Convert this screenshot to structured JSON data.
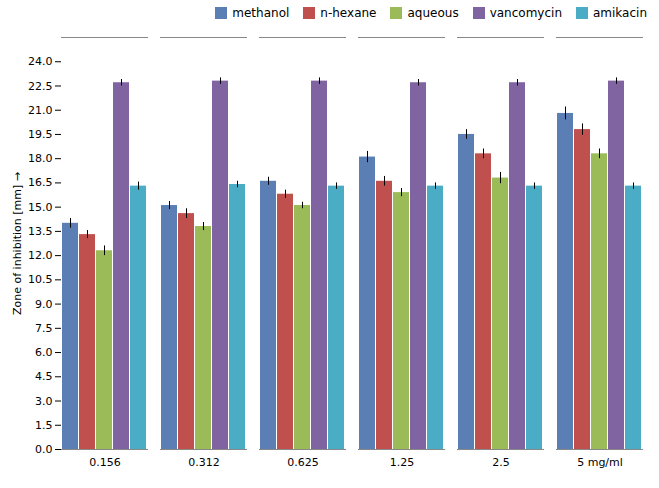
{
  "chart_data": {
    "type": "bar",
    "categories": [
      "0.156",
      "0.312",
      "0.625",
      "1.25",
      "2.5",
      "5 mg/ml"
    ],
    "series": [
      {
        "name": "methanol",
        "color": "#5b7fb5",
        "values": [
          14.0,
          15.1,
          16.6,
          18.1,
          19.5,
          20.8
        ],
        "errors": [
          0.3,
          0.25,
          0.25,
          0.35,
          0.3,
          0.4
        ]
      },
      {
        "name": "n-hexane",
        "color": "#c0504d",
        "values": [
          13.3,
          14.6,
          15.8,
          16.6,
          18.3,
          19.8
        ],
        "errors": [
          0.25,
          0.3,
          0.25,
          0.3,
          0.3,
          0.35
        ]
      },
      {
        "name": "aqueous",
        "color": "#9bbb59",
        "values": [
          12.3,
          13.8,
          15.1,
          15.9,
          16.8,
          18.3
        ],
        "errors": [
          0.3,
          0.25,
          0.2,
          0.25,
          0.35,
          0.3
        ]
      },
      {
        "name": "vancomycin",
        "color": "#8064a2",
        "values": [
          22.7,
          22.8,
          22.8,
          22.7,
          22.7,
          22.8
        ],
        "errors": [
          0.2,
          0.2,
          0.2,
          0.2,
          0.2,
          0.2
        ]
      },
      {
        "name": "amikacin",
        "color": "#4bacc6",
        "values": [
          16.3,
          16.4,
          16.3,
          16.3,
          16.3,
          16.3
        ],
        "errors": [
          0.25,
          0.2,
          0.2,
          0.2,
          0.2,
          0.2
        ]
      }
    ],
    "ylabel": "Zone of inhibition [mm]",
    "ylim": [
      0,
      25.5
    ],
    "yticks": [
      {
        "value": 0.0,
        "label": "0.0"
      },
      1.5,
      {
        "value": 3.0,
        "label": "3.0"
      },
      4.5,
      {
        "value": 6.0,
        "label": "6.0"
      },
      7.5,
      {
        "value": 9.0,
        "label": "9.0"
      },
      10.5,
      {
        "value": 12.0,
        "label": "12.0"
      },
      13.5,
      {
        "value": 15.0,
        "label": "15.0"
      },
      16.5,
      {
        "value": 18.0,
        "label": "18.0"
      },
      19.5,
      {
        "value": 21.0,
        "label": "21.0"
      },
      22.5,
      {
        "value": 24.0,
        "label": "24.0"
      }
    ],
    "grid": false,
    "legend": "upper right"
  }
}
